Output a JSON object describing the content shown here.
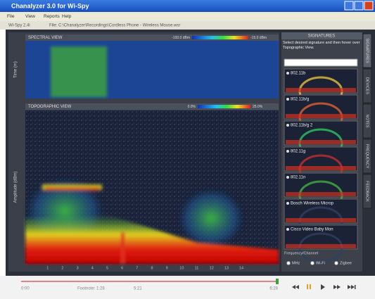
{
  "window": {
    "title": "Chanalyzer 3.0 for Wi-Spy"
  },
  "menu": [
    "File",
    "View",
    "Reports",
    "Help"
  ],
  "toolbar": {
    "device": "Wi-Spy 2.4i",
    "file": "File: C:\\Chanalyzer\\Recordings\\Cordless Phone - Wireless Mouse.wsr"
  },
  "spectral_view": {
    "title": "SPECTRAL VIEW",
    "y_label": "Time (m)",
    "scale_min": "-100.0 dBm",
    "scale_max": "-15.0 dBm"
  },
  "topographic_view": {
    "title": "TOPOGRAPHIC VIEW",
    "y_label": "Amplitude (dBm)",
    "scale_min": "0.0%",
    "scale_max": "25.0%",
    "channels": [
      "1",
      "2",
      "3",
      "4",
      "5",
      "6",
      "7",
      "8",
      "9",
      "10",
      "11",
      "12",
      "13",
      "14"
    ]
  },
  "side_panel": {
    "header": "SIGNATURES",
    "instructions": "Select desired signature and then hover over Topographic View.",
    "signatures": [
      "802.11b",
      "802.11b/g",
      "802.11b/g 2",
      "802.11g",
      "802.11n",
      "Bosch Wireless Microp",
      "Cisco Video Baby Mon"
    ],
    "tabs": [
      "SIGNATURES",
      "DEVICES",
      "NOTES",
      "FREQUENCY",
      "FEEDBACK"
    ],
    "option_label": "Frequency/Channel",
    "options": [
      "MHz",
      "Wi-Fi",
      "Zigbee"
    ]
  },
  "timeline": {
    "start": "0:00",
    "footnote": "Footnote: 1:28",
    "position": "5:21",
    "end": "6:28"
  }
}
